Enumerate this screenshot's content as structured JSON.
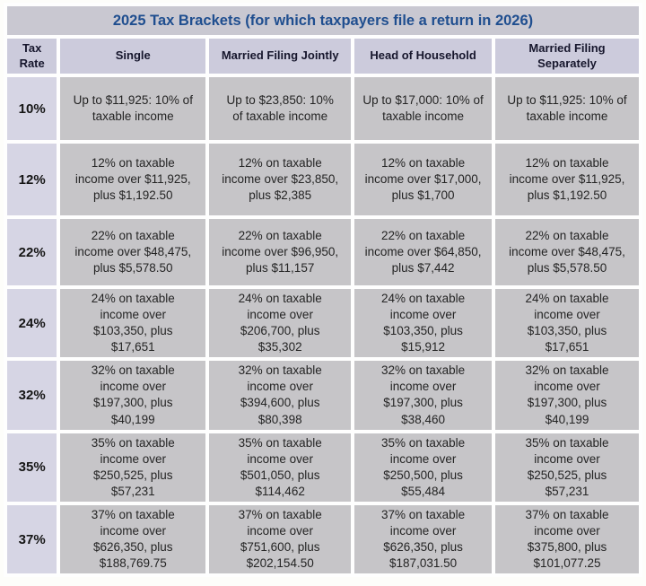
{
  "chart_data": {
    "type": "table",
    "title": "2025 Tax Brackets (for which taxpayers file a return in 2026)",
    "columns": [
      "Tax Rate",
      "Single",
      "Married Filing Jointly",
      "Head of Household",
      "Married Filing Separately"
    ],
    "rows": [
      {
        "rate": "10%",
        "cells": [
          "Up to $11,925: 10% of\ntaxable income",
          "Up to $23,850: 10%\nof taxable income",
          "Up to $17,000: 10% of\ntaxable income",
          "Up to $11,925: 10% of\ntaxable income"
        ]
      },
      {
        "rate": "12%",
        "cells": [
          "12% on taxable\nincome over $11,925,\nplus $1,192.50",
          "12% on taxable\nincome over $23,850,\nplus $2,385",
          "12% on taxable\nincome over $17,000,\nplus $1,700",
          "12% on taxable\nincome over $11,925,\nplus $1,192.50"
        ]
      },
      {
        "rate": "22%",
        "cells": [
          "22% on taxable\nincome over $48,475,\nplus $5,578.50",
          "22% on taxable\nincome over $96,950,\nplus $11,157",
          "22% on taxable\nincome over $64,850,\nplus $7,442",
          "22% on taxable\nincome over $48,475,\nplus $5,578.50"
        ]
      },
      {
        "rate": "24%",
        "cells": [
          "24% on taxable\nincome over\n$103,350, plus\n$17,651",
          "24% on taxable\nincome over\n$206,700, plus\n$35,302",
          "24% on taxable\nincome over\n$103,350, plus\n$15,912",
          "24% on taxable\nincome over\n$103,350, plus\n$17,651"
        ]
      },
      {
        "rate": "32%",
        "cells": [
          "32% on taxable\nincome over\n$197,300, plus\n$40,199",
          "32% on taxable\nincome over\n$394,600, plus\n$80,398",
          "32% on taxable\nincome over\n$197,300, plus\n$38,460",
          "32% on taxable\nincome over\n$197,300, plus\n$40,199"
        ]
      },
      {
        "rate": "35%",
        "cells": [
          "35% on taxable\nincome over\n$250,525, plus\n$57,231",
          "35% on taxable\nincome over\n$501,050, plus\n$114,462",
          "35% on taxable\nincome over\n$250,500, plus\n$55,484",
          "35% on taxable\nincome over\n$250,525, plus\n$57,231"
        ]
      },
      {
        "rate": "37%",
        "cells": [
          "37% on taxable\nincome over\n$626,350, plus\n$188,769.75",
          "37% on taxable\nincome over\n$751,600, plus\n$202,154.50",
          "37% on taxable\nincome over\n$626,350, plus\n$187,031.50",
          "37% on taxable\nincome over\n$375,800, plus\n$101,077.25"
        ]
      }
    ]
  },
  "colors": {
    "page_background": "#fdfdfa",
    "gap_color": "#fefefe",
    "title_bar_bg": "#c9c8d1",
    "title_text": "#1f4e8f",
    "header_bg": "#cccbdc",
    "header_text": "#16162c",
    "rate_cell_bg": "#d6d5e4",
    "data_cell_bg": "#c6c5c8",
    "body_text": "#242424"
  }
}
